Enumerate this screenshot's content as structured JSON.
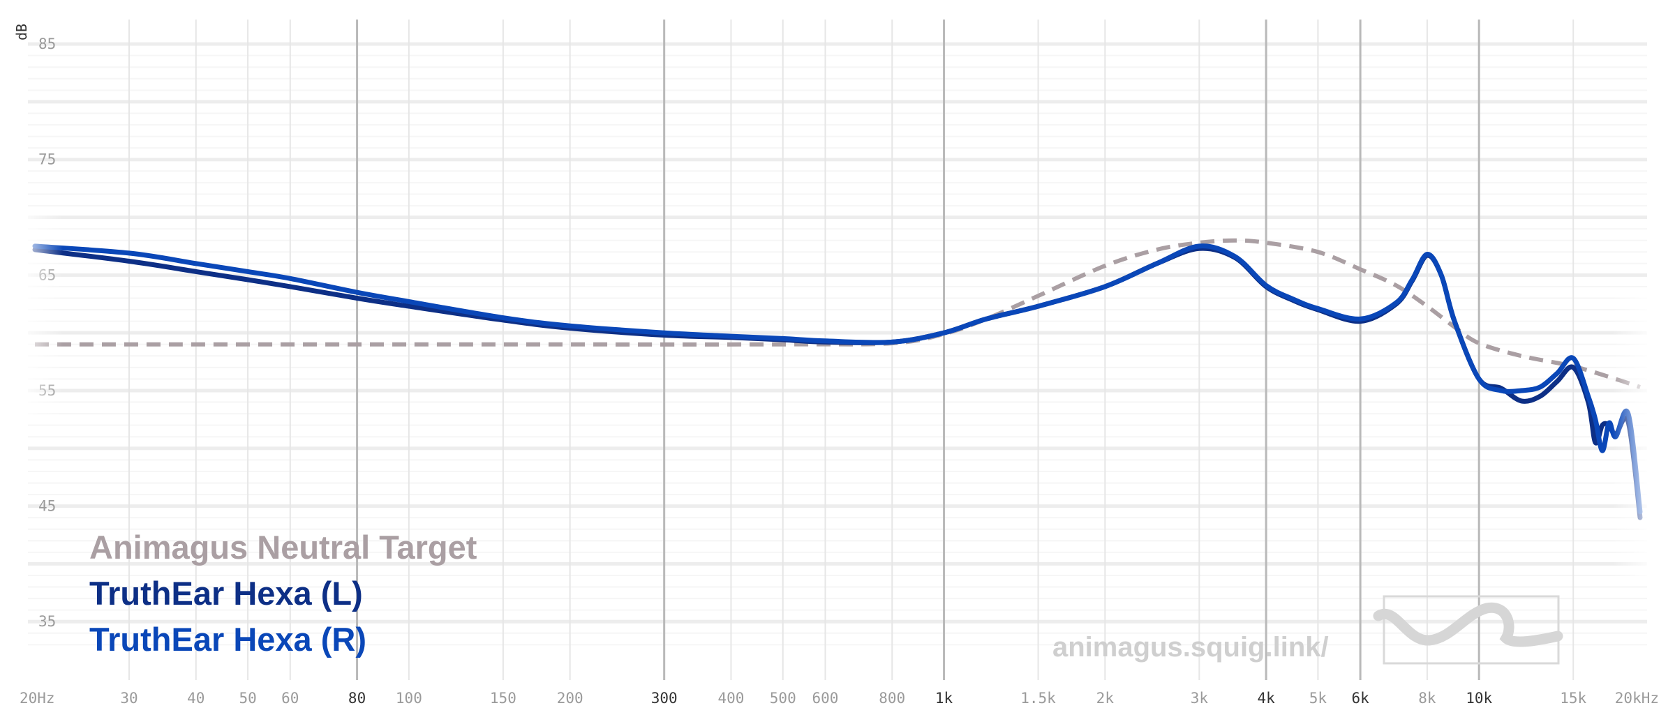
{
  "chart_data": {
    "type": "line",
    "xscale": "log",
    "xlim": [
      20,
      20000
    ],
    "ylim": [
      30,
      87
    ],
    "ylabel": "dB",
    "y_ticks": [
      {
        "value": 85,
        "label": "85"
      },
      {
        "value": 75,
        "label": "75"
      },
      {
        "value": 65,
        "label": "65"
      },
      {
        "value": 55,
        "label": "55"
      },
      {
        "value": 45,
        "label": "45"
      },
      {
        "value": 35,
        "label": "35"
      }
    ],
    "x_ticks": [
      {
        "value": 20,
        "label": "20Hz",
        "emph": false
      },
      {
        "value": 30,
        "label": "30",
        "emph": false
      },
      {
        "value": 40,
        "label": "40",
        "emph": false
      },
      {
        "value": 50,
        "label": "50",
        "emph": false
      },
      {
        "value": 60,
        "label": "60",
        "emph": false
      },
      {
        "value": 80,
        "label": "80",
        "emph": true
      },
      {
        "value": 100,
        "label": "100",
        "emph": false
      },
      {
        "value": 150,
        "label": "150",
        "emph": false
      },
      {
        "value": 200,
        "label": "200",
        "emph": false
      },
      {
        "value": 300,
        "label": "300",
        "emph": true
      },
      {
        "value": 400,
        "label": "400",
        "emph": false
      },
      {
        "value": 500,
        "label": "500",
        "emph": false
      },
      {
        "value": 600,
        "label": "600",
        "emph": false
      },
      {
        "value": 800,
        "label": "800",
        "emph": false
      },
      {
        "value": 1000,
        "label": "1k",
        "emph": true
      },
      {
        "value": 1500,
        "label": "1.5k",
        "emph": false
      },
      {
        "value": 2000,
        "label": "2k",
        "emph": false
      },
      {
        "value": 3000,
        "label": "3k",
        "emph": false
      },
      {
        "value": 4000,
        "label": "4k",
        "emph": true
      },
      {
        "value": 5000,
        "label": "5k",
        "emph": false
      },
      {
        "value": 6000,
        "label": "6k",
        "emph": true
      },
      {
        "value": 8000,
        "label": "8k",
        "emph": false
      },
      {
        "value": 10000,
        "label": "10k",
        "emph": true
      },
      {
        "value": 15000,
        "label": "15k",
        "emph": false
      },
      {
        "value": 20000,
        "label": "20kHz",
        "emph": false
      }
    ],
    "series": [
      {
        "name": "Animagus Neutral Target",
        "color": "#aa9fa3",
        "dashed": true,
        "x": [
          20,
          100,
          500,
          800,
          1000,
          1200,
          1500,
          2000,
          2500,
          3000,
          3500,
          4000,
          5000,
          6000,
          7000,
          8000,
          9000,
          10000,
          12000,
          15000,
          18000,
          20000
        ],
        "y": [
          59,
          59,
          59,
          59.1,
          59.9,
          61.2,
          63.2,
          65.8,
          67.2,
          67.8,
          68.0,
          67.8,
          67.0,
          65.5,
          64.1,
          62.3,
          60.5,
          59.1,
          58.0,
          57.1,
          56.0,
          55.3
        ]
      },
      {
        "name": "TruthEar Hexa (L)",
        "color": "#0d2f86",
        "dashed": false,
        "x": [
          20,
          30,
          40,
          50,
          60,
          80,
          100,
          150,
          200,
          300,
          400,
          500,
          600,
          800,
          1000,
          1200,
          1500,
          2000,
          2500,
          3000,
          3500,
          4000,
          4500,
          5000,
          6000,
          7000,
          7500,
          8000,
          8500,
          9000,
          10000,
          11000,
          12000,
          13000,
          14000,
          15000,
          16000,
          16500,
          17000,
          17500,
          18000,
          19000,
          20000
        ],
        "y": [
          67.2,
          66.2,
          65.3,
          64.6,
          64.0,
          63.0,
          62.3,
          61.1,
          60.4,
          59.8,
          59.6,
          59.4,
          59.2,
          59.2,
          60.0,
          61.2,
          62.3,
          64.0,
          66.0,
          67.3,
          66.5,
          64.0,
          62.8,
          62.0,
          61.0,
          62.5,
          64.5,
          66.7,
          65.0,
          61.0,
          56.0,
          55.2,
          54.1,
          54.5,
          55.8,
          57.0,
          54.0,
          50.5,
          52.0,
          52.0,
          51.2,
          52.3,
          44.0
        ]
      },
      {
        "name": "TruthEar Hexa (R)",
        "color": "#0a47b8",
        "dashed": false,
        "x": [
          20,
          30,
          40,
          50,
          60,
          80,
          100,
          150,
          200,
          300,
          400,
          500,
          600,
          800,
          1000,
          1200,
          1500,
          2000,
          2500,
          3000,
          3500,
          4000,
          4500,
          5000,
          6000,
          7000,
          7500,
          8000,
          8500,
          9000,
          10000,
          11000,
          12000,
          13000,
          14000,
          15000,
          16000,
          16500,
          17000,
          17500,
          18000,
          19000,
          20000
        ],
        "y": [
          67.5,
          66.9,
          66.0,
          65.3,
          64.7,
          63.5,
          62.7,
          61.3,
          60.6,
          60.0,
          59.7,
          59.5,
          59.3,
          59.2,
          60.0,
          61.2,
          62.3,
          64.0,
          66.0,
          67.5,
          66.6,
          64.1,
          62.9,
          62.1,
          61.2,
          62.6,
          64.6,
          66.8,
          65.0,
          61.0,
          56.0,
          55.0,
          55.0,
          55.3,
          56.5,
          57.8,
          54.5,
          52.5,
          49.8,
          52.2,
          51.0,
          53.0,
          44.5
        ]
      }
    ],
    "legend": {
      "position": "bottom-left"
    },
    "grid": true
  },
  "watermark": {
    "text": "animagus.squig.link/"
  }
}
